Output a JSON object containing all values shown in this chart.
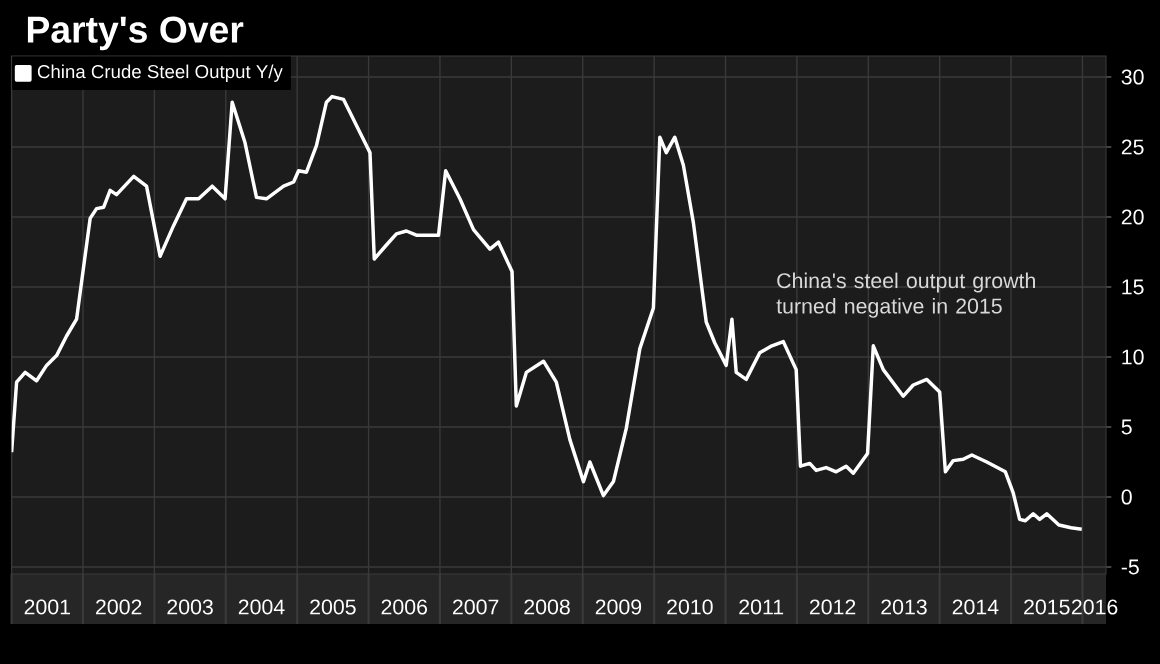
{
  "chart_data": {
    "type": "line",
    "title": "Party's Over",
    "annotations": [
      "China's steel output growth turned negative in 2015"
    ],
    "series": [
      {
        "name": "China Crude Steel Output Y/y",
        "color": "#ffffff",
        "x": [
          2001.0,
          2001.07,
          2001.19,
          2001.35,
          2001.49,
          2001.63,
          2001.77,
          2001.91,
          2002.1,
          2002.19,
          2002.29,
          2002.38,
          2002.47,
          2002.71,
          2002.89,
          2003.08,
          2003.27,
          2003.45,
          2003.62,
          2003.81,
          2003.99,
          2004.09,
          2004.27,
          2004.43,
          2004.57,
          2004.81,
          2004.95,
          2005.02,
          2005.13,
          2005.27,
          2005.41,
          2005.49,
          2005.65,
          2005.97,
          2006.02,
          2006.08,
          2006.25,
          2006.39,
          2006.53,
          2006.67,
          2006.98,
          2007.08,
          2007.28,
          2007.47,
          2007.7,
          2007.82,
          2008.01,
          2008.07,
          2008.21,
          2008.45,
          2008.63,
          2008.82,
          2009.01,
          2009.1,
          2009.29,
          2009.43,
          2009.61,
          2009.8,
          2009.99,
          2010.08,
          2010.17,
          2010.29,
          2010.41,
          2010.55,
          2010.73,
          2010.85,
          2011.01,
          2011.09,
          2011.15,
          2011.29,
          2011.48,
          2011.65,
          2011.81,
          2011.99,
          2012.05,
          2012.18,
          2012.27,
          2012.41,
          2012.55,
          2012.69,
          2012.79,
          2012.99,
          2013.07,
          2013.21,
          2013.49,
          2013.63,
          2013.82,
          2014.0,
          2014.08,
          2014.19,
          2014.33,
          2014.45,
          2014.66,
          2014.92,
          2015.03,
          2015.12,
          2015.2,
          2015.31,
          2015.4,
          2015.5,
          2015.67,
          2015.84,
          2015.99
        ],
        "values": [
          3.2,
          8.2,
          8.9,
          8.3,
          9.4,
          10.1,
          11.5,
          12.7,
          19.9,
          20.6,
          20.7,
          21.9,
          21.6,
          22.9,
          22.2,
          17.2,
          19.4,
          21.3,
          21.3,
          22.2,
          21.3,
          28.2,
          25.3,
          21.4,
          21.3,
          22.2,
          22.5,
          23.3,
          23.2,
          25.1,
          28.2,
          28.6,
          28.4,
          25.1,
          24.6,
          17.0,
          18.0,
          18.8,
          19.0,
          18.7,
          18.7,
          23.3,
          21.3,
          19.1,
          17.7,
          18.2,
          16.1,
          6.5,
          8.9,
          9.7,
          8.2,
          4.1,
          1.1,
          2.5,
          0.1,
          1.1,
          4.9,
          10.6,
          13.5,
          25.7,
          24.6,
          25.7,
          23.7,
          19.6,
          12.5,
          11.0,
          9.4,
          12.7,
          8.9,
          8.4,
          10.3,
          10.8,
          11.1,
          9.1,
          2.2,
          2.4,
          1.9,
          2.1,
          1.8,
          2.2,
          1.7,
          3.1,
          10.8,
          9.1,
          7.2,
          8.0,
          8.4,
          7.5,
          1.8,
          2.6,
          2.7,
          3.0,
          2.5,
          1.8,
          0.3,
          -1.6,
          -1.7,
          -1.2,
          -1.6,
          -1.2,
          -2.0,
          -2.2,
          -2.3
        ]
      }
    ],
    "xlim": [
      2001,
      2016.33
    ],
    "xticks": [
      {
        "value": 2001.5,
        "label": "2001"
      },
      {
        "value": 2002.5,
        "label": "2002"
      },
      {
        "value": 2003.5,
        "label": "2003"
      },
      {
        "value": 2004.5,
        "label": "2004"
      },
      {
        "value": 2005.5,
        "label": "2005"
      },
      {
        "value": 2006.5,
        "label": "2006"
      },
      {
        "value": 2007.5,
        "label": "2007"
      },
      {
        "value": 2008.5,
        "label": "2008"
      },
      {
        "value": 2009.5,
        "label": "2009"
      },
      {
        "value": 2010.5,
        "label": "2010"
      },
      {
        "value": 2011.5,
        "label": "2011"
      },
      {
        "value": 2012.5,
        "label": "2012"
      },
      {
        "value": 2013.5,
        "label": "2013"
      },
      {
        "value": 2014.5,
        "label": "2014"
      },
      {
        "value": 2015.5,
        "label": "2015"
      },
      {
        "value": 2016.17,
        "label": "2016"
      }
    ],
    "ylim": [
      -5.5,
      31.5
    ],
    "yticks": [
      -5,
      0,
      5,
      10,
      15,
      20,
      25,
      30
    ],
    "grid": true,
    "legend": "top left",
    "marker": "none",
    "line_style": "solid"
  }
}
